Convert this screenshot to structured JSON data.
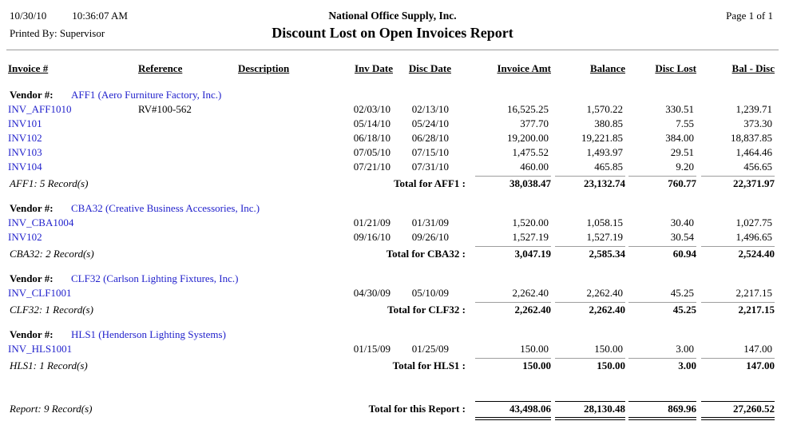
{
  "page": {
    "date": "10/30/10",
    "time": "10:36:07 AM",
    "printed_by": "Printed By: Supervisor",
    "company": "National Office Supply, Inc.",
    "title": "Discount Lost on Open Invoices Report",
    "page_label": "Page 1 of 1"
  },
  "columns": {
    "invoice": "Invoice #",
    "reference": "Reference",
    "description": "Description",
    "inv_date": "Inv Date",
    "disc_date": "Disc Date",
    "invoice_amt": "Invoice Amt",
    "balance": "Balance",
    "disc_lost": "Disc Lost",
    "bal_disc": "Bal - Disc"
  },
  "vendor_label": "Vendor #:",
  "groups": [
    {
      "vendor": "AFF1 (Aero Furniture Factory, Inc.)",
      "rows": [
        {
          "invoice": "INV_AFF1010",
          "reference": "RV#100-562",
          "description": "",
          "inv_date": "02/03/10",
          "disc_date": "02/13/10",
          "invoice_amt": "16,525.25",
          "balance": "1,570.22",
          "disc_lost": "330.51",
          "bal_disc": "1,239.71"
        },
        {
          "invoice": "INV101",
          "reference": "",
          "description": "",
          "inv_date": "05/14/10",
          "disc_date": "05/24/10",
          "invoice_amt": "377.70",
          "balance": "380.85",
          "disc_lost": "7.55",
          "bal_disc": "373.30"
        },
        {
          "invoice": "INV102",
          "reference": "",
          "description": "",
          "inv_date": "06/18/10",
          "disc_date": "06/28/10",
          "invoice_amt": "19,200.00",
          "balance": "19,221.85",
          "disc_lost": "384.00",
          "bal_disc": "18,837.85"
        },
        {
          "invoice": "INV103",
          "reference": "",
          "description": "",
          "inv_date": "07/05/10",
          "disc_date": "07/15/10",
          "invoice_amt": "1,475.52",
          "balance": "1,493.97",
          "disc_lost": "29.51",
          "bal_disc": "1,464.46"
        },
        {
          "invoice": "INV104",
          "reference": "",
          "description": "",
          "inv_date": "07/21/10",
          "disc_date": "07/31/10",
          "invoice_amt": "460.00",
          "balance": "465.85",
          "disc_lost": "9.20",
          "bal_disc": "456.65"
        }
      ],
      "record_count": "AFF1: 5 Record(s)",
      "total_label": "Total for AFF1 :",
      "totals": {
        "invoice_amt": "38,038.47",
        "balance": "23,132.74",
        "disc_lost": "760.77",
        "bal_disc": "22,371.97"
      }
    },
    {
      "vendor": "CBA32 (Creative Business Accessories, Inc.)",
      "rows": [
        {
          "invoice": "INV_CBA1004",
          "reference": "",
          "description": "",
          "inv_date": "01/21/09",
          "disc_date": "01/31/09",
          "invoice_amt": "1,520.00",
          "balance": "1,058.15",
          "disc_lost": "30.40",
          "bal_disc": "1,027.75"
        },
        {
          "invoice": "INV102",
          "reference": "",
          "description": "",
          "inv_date": "09/16/10",
          "disc_date": "09/26/10",
          "invoice_amt": "1,527.19",
          "balance": "1,527.19",
          "disc_lost": "30.54",
          "bal_disc": "1,496.65"
        }
      ],
      "record_count": "CBA32: 2 Record(s)",
      "total_label": "Total for CBA32 :",
      "totals": {
        "invoice_amt": "3,047.19",
        "balance": "2,585.34",
        "disc_lost": "60.94",
        "bal_disc": "2,524.40"
      }
    },
    {
      "vendor": "CLF32 (Carlson Lighting Fixtures, Inc.)",
      "rows": [
        {
          "invoice": "INV_CLF1001",
          "reference": "",
          "description": "",
          "inv_date": "04/30/09",
          "disc_date": "05/10/09",
          "invoice_amt": "2,262.40",
          "balance": "2,262.40",
          "disc_lost": "45.25",
          "bal_disc": "2,217.15"
        }
      ],
      "record_count": "CLF32: 1 Record(s)",
      "total_label": "Total for CLF32 :",
      "totals": {
        "invoice_amt": "2,262.40",
        "balance": "2,262.40",
        "disc_lost": "45.25",
        "bal_disc": "2,217.15"
      }
    },
    {
      "vendor": "HLS1 (Henderson Lighting Systems)",
      "rows": [
        {
          "invoice": "INV_HLS1001",
          "reference": "",
          "description": "",
          "inv_date": "01/15/09",
          "disc_date": "01/25/09",
          "invoice_amt": "150.00",
          "balance": "150.00",
          "disc_lost": "3.00",
          "bal_disc": "147.00"
        }
      ],
      "record_count": "HLS1: 1 Record(s)",
      "total_label": "Total for HLS1 :",
      "totals": {
        "invoice_amt": "150.00",
        "balance": "150.00",
        "disc_lost": "3.00",
        "bal_disc": "147.00"
      }
    }
  ],
  "report_summary": {
    "record_count": "Report: 9 Record(s)",
    "total_label": "Total for this Report :",
    "totals": {
      "invoice_amt": "43,498.06",
      "balance": "28,130.48",
      "disc_lost": "869.96",
      "bal_disc": "27,260.52"
    }
  },
  "colors": {
    "link_blue": "#2222CC",
    "subtotal_line_gray": "#9E9E9E",
    "rule_gray": "#9B9B9B"
  }
}
